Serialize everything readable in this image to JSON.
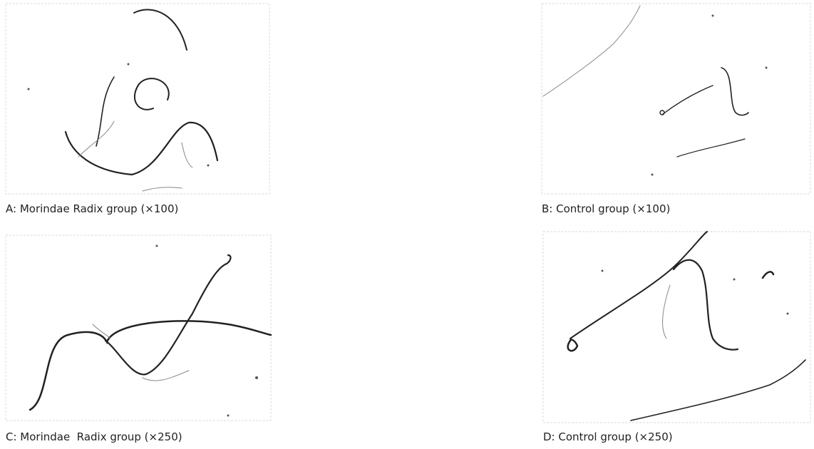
{
  "panels": [
    {
      "caption": "A: Morindae Radix group (×100)"
    },
    {
      "caption": "B: Control group (×100)"
    },
    {
      "caption": "C: Morindae  Radix group (×250)"
    },
    {
      "caption": "D: Control group (×250)"
    }
  ]
}
